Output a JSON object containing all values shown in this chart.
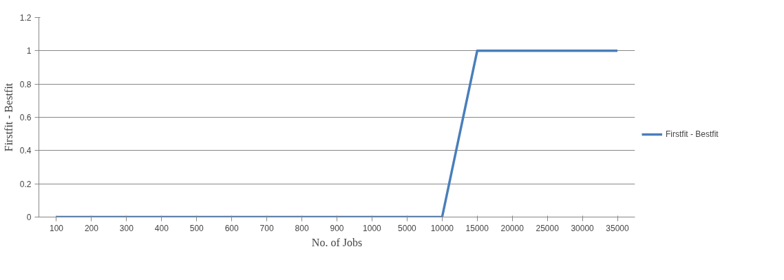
{
  "chart_data": {
    "type": "line",
    "xlabel": "No. of Jobs",
    "ylabel": "Firstfit - Bestfit",
    "categories": [
      "100",
      "200",
      "300",
      "400",
      "500",
      "600",
      "700",
      "800",
      "900",
      "1000",
      "5000",
      "10000",
      "15000",
      "20000",
      "25000",
      "30000",
      "35000"
    ],
    "series": [
      {
        "name": "Firstfit - Bestfit",
        "color": "#4a7ebb",
        "values": [
          0,
          0,
          0,
          0,
          0,
          0,
          0,
          0,
          0,
          0,
          0,
          0,
          1,
          1,
          1,
          1,
          1
        ]
      }
    ],
    "ylim": [
      0,
      1.2
    ],
    "yticks": [
      0,
      0.2,
      0.4,
      0.6,
      0.8,
      1,
      1.2
    ],
    "grid": "y",
    "legend": "right",
    "marker": "none",
    "line_style": "solid"
  }
}
